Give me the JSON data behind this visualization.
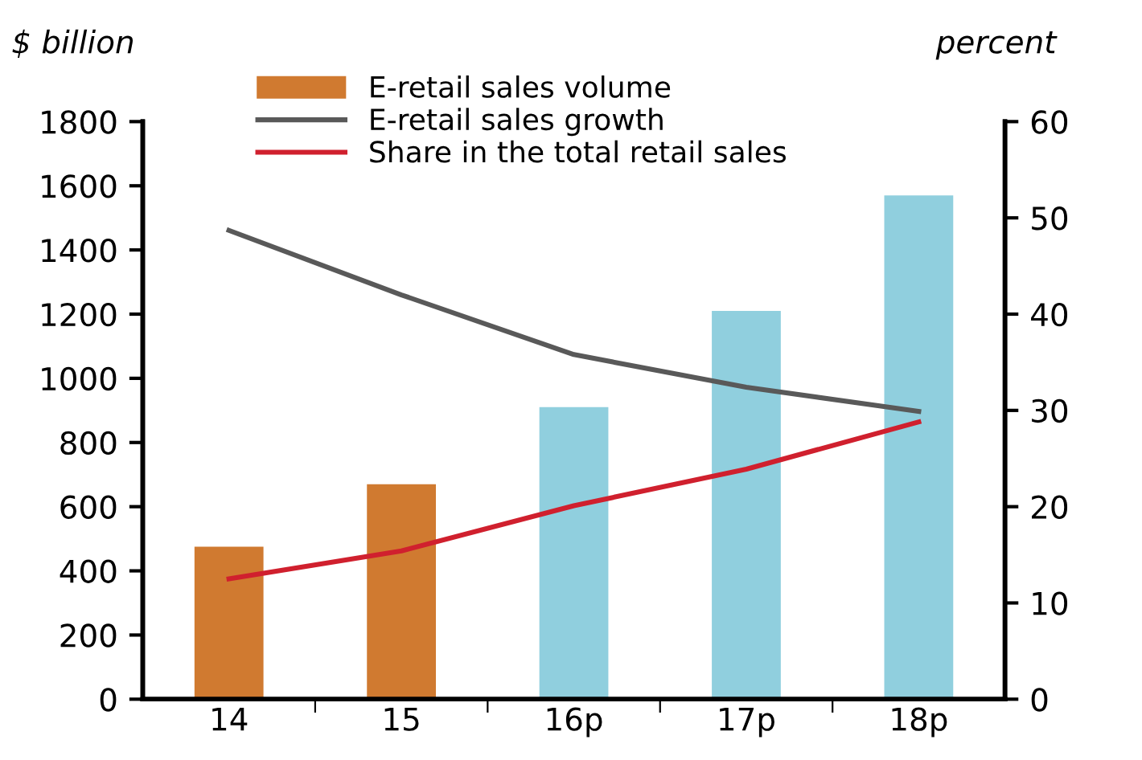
{
  "chart_data": {
    "type": "bar",
    "ylabel": "$ billion",
    "y2label": "percent",
    "categories": [
      "14",
      "15",
      "16p",
      "17p",
      "18p"
    ],
    "series": [
      {
        "name": "E-retail sales volume",
        "color": "#d07a30",
        "colors": [
          "#d07a30",
          "#d07a30",
          "#90cfde",
          "#90cfde",
          "#90cfde"
        ],
        "values": [
          475,
          670,
          910,
          1210,
          1570
        ]
      },
      {
        "name": "E-retail sales growth",
        "type": "line",
        "axis": "y2",
        "color": "#595959",
        "values": [
          48.7,
          42.0,
          35.8,
          32.4,
          29.9
        ]
      },
      {
        "name": "Share in the total retail sales",
        "type": "line",
        "axis": "y2",
        "color": "#d0202e",
        "values": [
          12.5,
          15.4,
          20.1,
          23.9,
          28.8
        ]
      }
    ],
    "ylim": [
      0,
      1800
    ],
    "yticks": [
      0,
      200,
      400,
      600,
      800,
      1000,
      1200,
      1400,
      1600,
      1800
    ],
    "y2lim": [
      0,
      60
    ],
    "y2ticks": [
      0,
      10,
      20,
      30,
      40,
      50,
      60
    ],
    "legend": "top left",
    "grid": false,
    "marker": "none",
    "line_style": "solid"
  }
}
